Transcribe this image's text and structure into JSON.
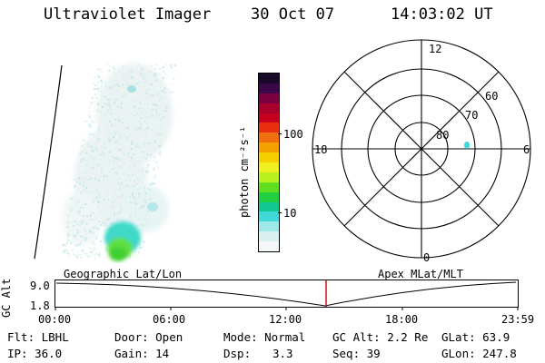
{
  "header": {
    "instrument": "Ultraviolet Imager",
    "date": "30 Oct 07",
    "time": "14:03:02 UT"
  },
  "colorbar": {
    "label": "photon cm⁻²s⁻¹",
    "tick_labels": [
      "100",
      "10"
    ],
    "colors": [
      "#1a0a2a",
      "#3a0848",
      "#7a0040",
      "#a8002a",
      "#c80020",
      "#e83010",
      "#f07010",
      "#f4a000",
      "#f4d000",
      "#f0f020",
      "#b8f020",
      "#60e020",
      "#20d040",
      "#10c890",
      "#40d8d8",
      "#a0e8e8",
      "#d8f0f0",
      "#f4f8f8"
    ]
  },
  "polar": {
    "labels": {
      "top": "12",
      "left": "18",
      "right": "6",
      "bottom": "0",
      "ring_60": "60",
      "ring_70": "70",
      "ring_80": "80"
    }
  },
  "timeline": {
    "y_axis_label": "GC Alt",
    "y_ticks": [
      "9.0",
      "1.8"
    ],
    "left_title": "Geographic Lat/Lon",
    "right_title": "Apex MLat/MLT",
    "x_ticks": [
      "00:00",
      "06:00",
      "12:00",
      "18:00",
      "23:59"
    ],
    "marker_color": "#cc0000"
  },
  "info": {
    "filter": "Flt: LBHL",
    "door": "Door: Open",
    "mode": "Mode: Normal",
    "gc_alt": "GC Alt: 2.2 Re",
    "glat": "GLat: 63.9",
    "ip": "IP: 36.0",
    "gain": "Gain: 14",
    "dsp_label": "Dsp:",
    "dsp_value": "3.3",
    "seq": "Seq: 39",
    "glon": "GLon: 247.8"
  }
}
